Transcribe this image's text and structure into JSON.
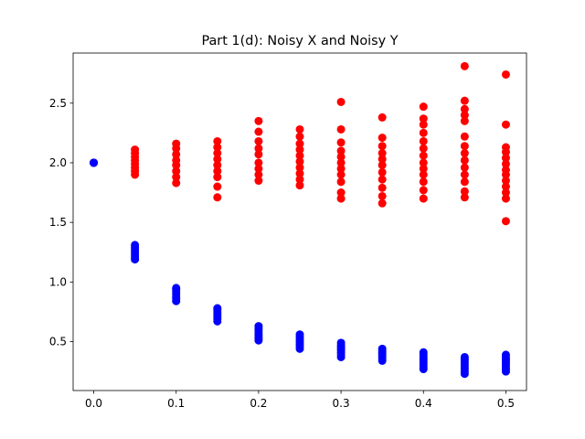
{
  "chart_data": {
    "type": "scatter",
    "title": "Part 1(d): Noisy X and Noisy Y",
    "xlabel": "",
    "ylabel": "",
    "xlim": [
      -0.025,
      0.525
    ],
    "ylim": [
      0.09,
      2.92
    ],
    "x_ticks": [
      0.0,
      0.1,
      0.2,
      0.3,
      0.4,
      0.5
    ],
    "x_tick_labels": [
      "0.0",
      "0.1",
      "0.2",
      "0.3",
      "0.4",
      "0.5"
    ],
    "y_ticks": [
      0.5,
      1.0,
      1.5,
      2.0,
      2.5
    ],
    "y_tick_labels": [
      "0.5",
      "1.0",
      "1.5",
      "2.0",
      "2.5"
    ],
    "grid": false,
    "series": [
      {
        "color": "#ff0000",
        "points": [
          [
            0.0,
            2.0
          ],
          [
            0.0,
            2.0
          ],
          [
            0.0,
            2.0
          ],
          [
            0.05,
            1.9
          ],
          [
            0.05,
            1.93
          ],
          [
            0.05,
            1.96
          ],
          [
            0.05,
            1.99
          ],
          [
            0.05,
            2.02
          ],
          [
            0.05,
            2.05
          ],
          [
            0.05,
            2.08
          ],
          [
            0.05,
            2.11
          ],
          [
            0.1,
            1.83
          ],
          [
            0.1,
            1.88
          ],
          [
            0.1,
            1.93
          ],
          [
            0.1,
            1.98
          ],
          [
            0.1,
            2.02
          ],
          [
            0.1,
            2.07
          ],
          [
            0.1,
            2.12
          ],
          [
            0.1,
            2.16
          ],
          [
            0.15,
            1.71
          ],
          [
            0.15,
            1.8
          ],
          [
            0.15,
            1.88
          ],
          [
            0.15,
            1.93
          ],
          [
            0.15,
            1.98
          ],
          [
            0.15,
            2.03
          ],
          [
            0.15,
            2.08
          ],
          [
            0.15,
            2.13
          ],
          [
            0.15,
            2.18
          ],
          [
            0.2,
            1.85
          ],
          [
            0.2,
            1.9
          ],
          [
            0.2,
            1.95
          ],
          [
            0.2,
            2.0
          ],
          [
            0.2,
            2.07
          ],
          [
            0.2,
            2.12
          ],
          [
            0.2,
            2.18
          ],
          [
            0.2,
            2.26
          ],
          [
            0.2,
            2.35
          ],
          [
            0.25,
            1.81
          ],
          [
            0.25,
            1.86
          ],
          [
            0.25,
            1.91
          ],
          [
            0.25,
            1.96
          ],
          [
            0.25,
            2.01
          ],
          [
            0.25,
            2.06
          ],
          [
            0.25,
            2.11
          ],
          [
            0.25,
            2.16
          ],
          [
            0.25,
            2.22
          ],
          [
            0.25,
            2.28
          ],
          [
            0.3,
            1.7
          ],
          [
            0.3,
            1.75
          ],
          [
            0.3,
            1.84
          ],
          [
            0.3,
            1.9
          ],
          [
            0.3,
            1.95
          ],
          [
            0.3,
            2.0
          ],
          [
            0.3,
            2.05
          ],
          [
            0.3,
            2.1
          ],
          [
            0.3,
            2.17
          ],
          [
            0.3,
            2.28
          ],
          [
            0.3,
            2.51
          ],
          [
            0.35,
            1.66
          ],
          [
            0.35,
            1.72
          ],
          [
            0.35,
            1.79
          ],
          [
            0.35,
            1.86
          ],
          [
            0.35,
            1.92
          ],
          [
            0.35,
            1.98
          ],
          [
            0.35,
            2.03
          ],
          [
            0.35,
            2.08
          ],
          [
            0.35,
            2.14
          ],
          [
            0.35,
            2.21
          ],
          [
            0.35,
            2.38
          ],
          [
            0.4,
            1.7
          ],
          [
            0.4,
            1.77
          ],
          [
            0.4,
            1.84
          ],
          [
            0.4,
            1.9
          ],
          [
            0.4,
            1.95
          ],
          [
            0.4,
            2.0
          ],
          [
            0.4,
            2.06
          ],
          [
            0.4,
            2.12
          ],
          [
            0.4,
            2.18
          ],
          [
            0.4,
            2.25
          ],
          [
            0.4,
            2.32
          ],
          [
            0.4,
            2.37
          ],
          [
            0.4,
            2.47
          ],
          [
            0.45,
            1.71
          ],
          [
            0.45,
            1.76
          ],
          [
            0.45,
            1.84
          ],
          [
            0.45,
            1.9
          ],
          [
            0.45,
            1.96
          ],
          [
            0.45,
            2.02
          ],
          [
            0.45,
            2.08
          ],
          [
            0.45,
            2.14
          ],
          [
            0.45,
            2.22
          ],
          [
            0.45,
            2.35
          ],
          [
            0.45,
            2.4
          ],
          [
            0.45,
            2.45
          ],
          [
            0.45,
            2.52
          ],
          [
            0.45,
            2.81
          ],
          [
            0.5,
            1.51
          ],
          [
            0.5,
            1.7
          ],
          [
            0.5,
            1.75
          ],
          [
            0.5,
            1.8
          ],
          [
            0.5,
            1.85
          ],
          [
            0.5,
            1.9
          ],
          [
            0.5,
            1.94
          ],
          [
            0.5,
            1.99
          ],
          [
            0.5,
            2.04
          ],
          [
            0.5,
            2.09
          ],
          [
            0.5,
            2.13
          ],
          [
            0.5,
            2.32
          ],
          [
            0.5,
            2.74
          ]
        ]
      },
      {
        "color": "#0000ff",
        "points": [
          [
            0.0,
            2.0
          ],
          [
            0.0,
            2.0
          ],
          [
            0.0,
            2.0
          ],
          [
            0.05,
            1.19
          ],
          [
            0.05,
            1.21
          ],
          [
            0.05,
            1.23
          ],
          [
            0.05,
            1.25
          ],
          [
            0.05,
            1.27
          ],
          [
            0.05,
            1.29
          ],
          [
            0.05,
            1.31
          ],
          [
            0.1,
            0.84
          ],
          [
            0.1,
            0.86
          ],
          [
            0.1,
            0.88
          ],
          [
            0.1,
            0.9
          ],
          [
            0.1,
            0.92
          ],
          [
            0.1,
            0.94
          ],
          [
            0.1,
            0.95
          ],
          [
            0.15,
            0.67
          ],
          [
            0.15,
            0.69
          ],
          [
            0.15,
            0.71
          ],
          [
            0.15,
            0.73
          ],
          [
            0.15,
            0.75
          ],
          [
            0.15,
            0.77
          ],
          [
            0.15,
            0.78
          ],
          [
            0.2,
            0.51
          ],
          [
            0.2,
            0.53
          ],
          [
            0.2,
            0.55
          ],
          [
            0.2,
            0.57
          ],
          [
            0.2,
            0.59
          ],
          [
            0.2,
            0.61
          ],
          [
            0.2,
            0.63
          ],
          [
            0.25,
            0.44
          ],
          [
            0.25,
            0.46
          ],
          [
            0.25,
            0.48
          ],
          [
            0.25,
            0.5
          ],
          [
            0.25,
            0.52
          ],
          [
            0.25,
            0.54
          ],
          [
            0.25,
            0.56
          ],
          [
            0.3,
            0.37
          ],
          [
            0.3,
            0.39
          ],
          [
            0.3,
            0.41
          ],
          [
            0.3,
            0.43
          ],
          [
            0.3,
            0.45
          ],
          [
            0.3,
            0.47
          ],
          [
            0.3,
            0.49
          ],
          [
            0.35,
            0.34
          ],
          [
            0.35,
            0.36
          ],
          [
            0.35,
            0.38
          ],
          [
            0.35,
            0.4
          ],
          [
            0.35,
            0.42
          ],
          [
            0.35,
            0.44
          ],
          [
            0.4,
            0.27
          ],
          [
            0.4,
            0.29
          ],
          [
            0.4,
            0.31
          ],
          [
            0.4,
            0.33
          ],
          [
            0.4,
            0.35
          ],
          [
            0.4,
            0.37
          ],
          [
            0.4,
            0.39
          ],
          [
            0.4,
            0.41
          ],
          [
            0.45,
            0.23
          ],
          [
            0.45,
            0.25
          ],
          [
            0.45,
            0.27
          ],
          [
            0.45,
            0.29
          ],
          [
            0.45,
            0.31
          ],
          [
            0.45,
            0.33
          ],
          [
            0.45,
            0.35
          ],
          [
            0.45,
            0.37
          ],
          [
            0.5,
            0.25
          ],
          [
            0.5,
            0.27
          ],
          [
            0.5,
            0.29
          ],
          [
            0.5,
            0.31
          ],
          [
            0.5,
            0.33
          ],
          [
            0.5,
            0.35
          ],
          [
            0.5,
            0.37
          ],
          [
            0.5,
            0.39
          ]
        ]
      }
    ]
  }
}
